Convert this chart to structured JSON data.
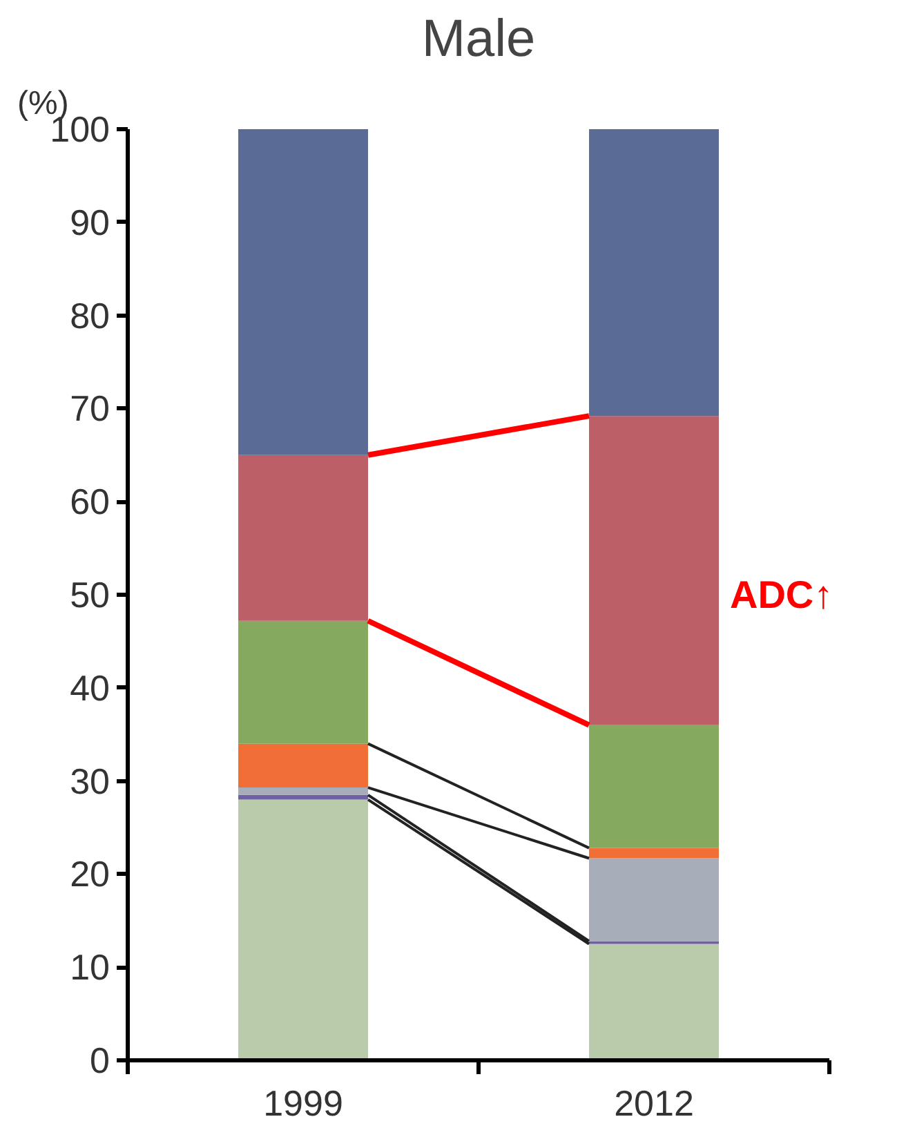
{
  "chart_data": {
    "type": "bar",
    "title": "Male",
    "ylabel": "(%)",
    "categories": [
      "1999",
      "2012"
    ],
    "stacked": true,
    "ylim": [
      0,
      100
    ],
    "yticks": [
      0,
      10,
      20,
      30,
      40,
      50,
      60,
      70,
      80,
      90,
      100
    ],
    "series": [
      {
        "color": "#b9cbaa",
        "values": [
          28.0,
          12.5
        ]
      },
      {
        "color": "#6f5fa5",
        "values": [
          0.5,
          0.3
        ]
      },
      {
        "color": "#a8aeb9",
        "values": [
          0.8,
          8.9
        ]
      },
      {
        "color": "#f26e37",
        "values": [
          4.7,
          1.1
        ]
      },
      {
        "color": "#85aa5f",
        "values": [
          13.2,
          13.2
        ]
      },
      {
        "color": "#bd5f67",
        "values": [
          17.8,
          33.2
        ]
      },
      {
        "color": "#5a6c96",
        "values": [
          35.0,
          30.8
        ]
      }
    ],
    "annotations": [
      "ADC↑"
    ]
  }
}
